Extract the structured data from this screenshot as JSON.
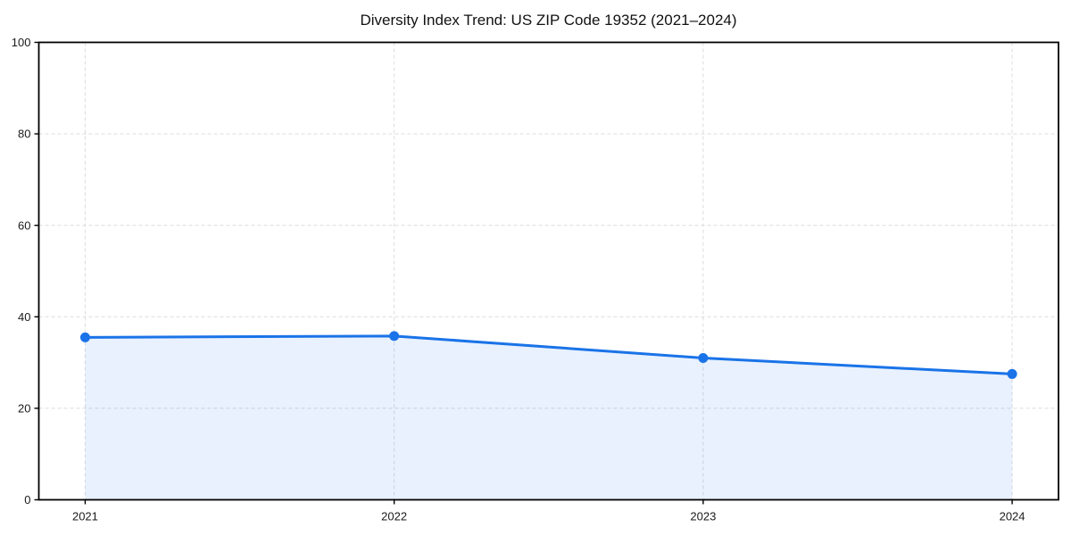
{
  "chart_data": {
    "type": "area",
    "title": "Diversity Index Trend: US ZIP Code 19352 (2021–2024)",
    "categories": [
      "2021",
      "2022",
      "2023",
      "2024"
    ],
    "series": [
      {
        "name": "Diversity Index",
        "values": [
          35.5,
          35.8,
          31.0,
          27.5
        ]
      }
    ],
    "xlabel": "",
    "ylabel": "",
    "ylim": [
      0,
      100
    ],
    "yticks": [
      0,
      20,
      40,
      60,
      80,
      100
    ],
    "grid": "dashed-both-axes",
    "legend": "none",
    "marker": "circle",
    "colors": {
      "line": "#1a73e8",
      "marker": "#1a73e8",
      "area_fill": "rgba(26,115,232,0.10)",
      "grid": "#dcdcdc",
      "axis": "#000000",
      "tick_label": "#1a1a1a",
      "title": "#111111",
      "background": "#ffffff"
    }
  }
}
